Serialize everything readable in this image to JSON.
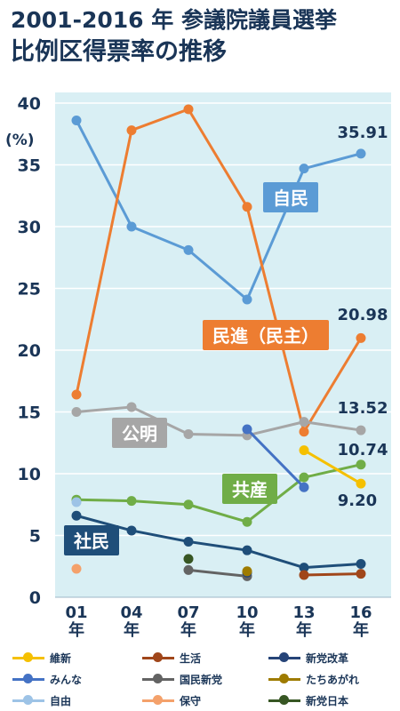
{
  "title": {
    "line1": "2001-2016 年 参議院議員選挙",
    "line2": "比例区得票率の推移"
  },
  "chart_data": {
    "type": "line",
    "ylabel": "(%)",
    "ylim": [
      0,
      40
    ],
    "y_ticks": [
      "0",
      "5",
      "10",
      "15",
      "20",
      "25",
      "30",
      "35",
      "40"
    ],
    "categories": [
      "01\n年",
      "04\n年",
      "07\n年",
      "10\n年",
      "13\n年",
      "16\n年"
    ],
    "grid": true,
    "series": [
      {
        "name": "自民",
        "color": "#5b9bd5",
        "values": [
          38.6,
          30.0,
          28.1,
          24.1,
          34.7,
          35.91
        ],
        "label_box": {
          "text": "自民",
          "color": "#5b9bd5"
        }
      },
      {
        "name": "民進（民主）",
        "color": "#ed7d31",
        "values": [
          16.4,
          37.8,
          39.5,
          31.6,
          13.4,
          20.98
        ],
        "label_box": {
          "text": "民進（民主）",
          "color": "#ed7d31"
        }
      },
      {
        "name": "公明",
        "color": "#a6a6a6",
        "values": [
          15.0,
          15.4,
          13.2,
          13.1,
          14.2,
          13.52
        ],
        "label_box": {
          "text": "公明",
          "color": "#a6a6a6"
        }
      },
      {
        "name": "共産",
        "color": "#70ad47",
        "values": [
          7.9,
          7.8,
          7.5,
          6.1,
          9.7,
          10.74
        ],
        "label_box": {
          "text": "共産",
          "color": "#70ad47"
        }
      },
      {
        "name": "社民",
        "color": "#1f4e79",
        "values": [
          6.6,
          5.4,
          4.5,
          3.8,
          2.4,
          2.7
        ],
        "label_box": {
          "text": "社民",
          "color": "#1f4e79"
        }
      },
      {
        "name": "維新",
        "color": "#f5c000",
        "values": [
          null,
          null,
          null,
          null,
          11.9,
          9.2
        ]
      },
      {
        "name": "みんな",
        "color": "#4472c4",
        "values": [
          null,
          null,
          null,
          13.6,
          8.9,
          null
        ]
      },
      {
        "name": "生活",
        "color": "#a0461a",
        "values": [
          null,
          null,
          null,
          null,
          1.8,
          1.9
        ]
      },
      {
        "name": "国民新党",
        "color": "#636363",
        "values": [
          null,
          null,
          2.2,
          1.7,
          null,
          null
        ]
      },
      {
        "name": "新党改革",
        "color": "#264478",
        "values": [
          null,
          null,
          null,
          2.0,
          null,
          null
        ]
      },
      {
        "name": "たちあがれ",
        "color": "#9e7b00",
        "values": [
          null,
          null,
          null,
          2.1,
          null,
          null
        ]
      },
      {
        "name": "自由",
        "color": "#9dc3e6",
        "values": [
          7.7,
          null,
          null,
          null,
          null,
          null
        ]
      },
      {
        "name": "保守",
        "color": "#f4a16b",
        "values": [
          2.3,
          null,
          null,
          null,
          null,
          null
        ]
      },
      {
        "name": "新党日本",
        "color": "#375623",
        "values": [
          null,
          null,
          3.1,
          null,
          null,
          null
        ]
      }
    ],
    "value_labels": [
      {
        "series": "自民",
        "text": "35.91"
      },
      {
        "series": "民進（民主）",
        "text": "20.98"
      },
      {
        "series": "公明",
        "text": "13.52"
      },
      {
        "series": "共産",
        "text": "10.74"
      },
      {
        "series": "維新",
        "text": "9.20"
      }
    ]
  },
  "legend": {
    "placement": "bottom",
    "items": [
      {
        "label": "維新",
        "color": "#f5c000"
      },
      {
        "label": "生活",
        "color": "#a0461a"
      },
      {
        "label": "新党改革",
        "color": "#264478"
      },
      {
        "label": "みんな",
        "color": "#4472c4"
      },
      {
        "label": "国民新党",
        "color": "#636363"
      },
      {
        "label": "たちあがれ",
        "color": "#9e7b00"
      },
      {
        "label": "自由",
        "color": "#9dc3e6"
      },
      {
        "label": "保守",
        "color": "#f4a16b"
      },
      {
        "label": "新党日本",
        "color": "#375623"
      }
    ]
  },
  "colors": {
    "plot_bg": "#d9eff4",
    "text_dark": "#1a3557",
    "grid": "#ffffff"
  }
}
